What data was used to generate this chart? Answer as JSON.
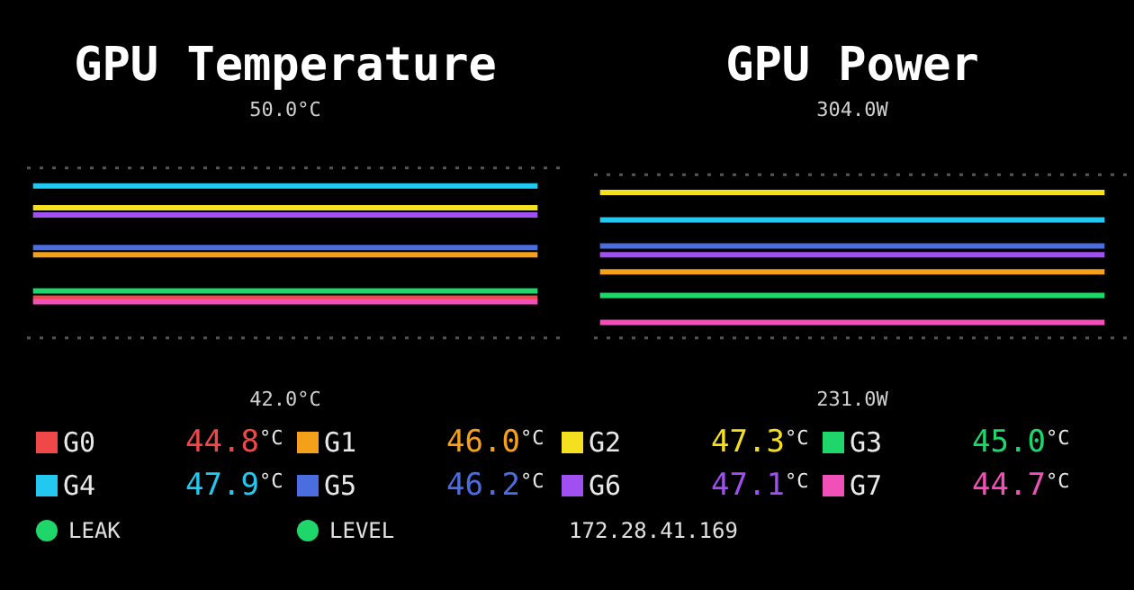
{
  "chart_data": [
    {
      "type": "line",
      "title": "GPU Temperature",
      "categories": [
        null,
        null,
        null,
        null,
        null,
        null,
        null,
        null,
        null,
        null,
        null,
        null,
        null,
        null,
        null,
        null
      ],
      "ylim": [
        42,
        50
      ],
      "yticks": [
        {
          "value": 42,
          "label": "42.0°C"
        },
        {
          "value": 50,
          "label": "50.0°C"
        }
      ],
      "tick_labels": "y",
      "grid": false,
      "legend": "bottom",
      "ref_lines": [
        {
          "axis": "y",
          "value": 48.4,
          "color": "#555555",
          "line_style": "dotted"
        },
        {
          "axis": "y",
          "value": 43.7,
          "color": "#555555",
          "line_style": "dotted"
        }
      ],
      "annotations": [
        "44.8°C",
        "46.0°C",
        "47.3°C",
        "45.0°C",
        "47.9°C",
        "46.2°C",
        "47.1°C",
        "44.7°C",
        "LEAK",
        "LEVEL",
        "172.28.41.169"
      ],
      "series": [
        {
          "name": "G0",
          "color": "#f04848",
          "values": [
            44.8,
            44.8,
            44.8,
            44.8,
            44.8,
            44.8,
            44.8,
            44.8,
            44.8,
            44.8,
            44.8,
            44.8,
            44.8,
            44.8,
            44.8,
            44.8
          ]
        },
        {
          "name": "G1",
          "color": "#f5a01a",
          "values": [
            46.0,
            46.0,
            46.0,
            46.0,
            46.0,
            46.0,
            46.0,
            46.0,
            46.0,
            46.0,
            46.0,
            46.0,
            46.0,
            46.0,
            46.0,
            46.0
          ]
        },
        {
          "name": "G2",
          "color": "#f5e020",
          "values": [
            47.3,
            47.3,
            47.3,
            47.3,
            47.3,
            47.3,
            47.3,
            47.3,
            47.3,
            47.3,
            47.3,
            47.3,
            47.3,
            47.3,
            47.3,
            47.3
          ]
        },
        {
          "name": "G3",
          "color": "#1ed66a",
          "values": [
            45.0,
            45.0,
            45.0,
            45.0,
            45.0,
            45.0,
            45.0,
            45.0,
            45.0,
            45.0,
            45.0,
            45.0,
            45.0,
            45.0,
            45.0,
            45.0
          ]
        },
        {
          "name": "G4",
          "color": "#22c8f0",
          "values": [
            47.9,
            47.9,
            47.9,
            47.9,
            47.9,
            47.9,
            47.9,
            47.9,
            47.9,
            47.9,
            47.9,
            47.9,
            47.9,
            47.9,
            47.9,
            47.9
          ]
        },
        {
          "name": "G5",
          "color": "#4a6ee0",
          "values": [
            46.2,
            46.2,
            46.2,
            46.2,
            46.2,
            46.2,
            46.2,
            46.2,
            46.2,
            46.2,
            46.2,
            46.2,
            46.2,
            46.2,
            46.2,
            46.2
          ]
        },
        {
          "name": "G6",
          "color": "#a050f0",
          "values": [
            47.1,
            47.1,
            47.1,
            47.1,
            47.1,
            47.1,
            47.1,
            47.1,
            47.1,
            47.1,
            47.1,
            47.1,
            47.1,
            47.1,
            47.1,
            47.1
          ]
        },
        {
          "name": "G7",
          "color": "#f050b8",
          "values": [
            44.7,
            44.7,
            44.7,
            44.7,
            44.7,
            44.7,
            44.7,
            44.7,
            44.7,
            44.7,
            44.7,
            44.7,
            44.7,
            44.7,
            44.7,
            44.7
          ]
        }
      ]
    },
    {
      "type": "line",
      "title": "GPU Power",
      "categories": [
        null,
        null,
        null,
        null,
        null,
        null,
        null,
        null,
        null,
        null,
        null,
        null,
        null,
        null,
        null,
        null
      ],
      "ylim": [
        231,
        304
      ],
      "yticks": [
        {
          "value": 231,
          "label": "231.0W"
        },
        {
          "value": 304,
          "label": "304.0W"
        }
      ],
      "tick_labels": "y",
      "grid": false,
      "ref_lines": [
        {
          "axis": "y",
          "value": 287.7,
          "color": "#555555",
          "line_style": "dotted"
        },
        {
          "axis": "y",
          "value": 246.5,
          "color": "#555555",
          "line_style": "dotted"
        }
      ],
      "series": [
        {
          "color": "#f04848",
          "values": [
            null,
            null,
            null,
            null,
            null,
            null,
            null,
            null,
            null,
            null,
            null,
            null,
            null,
            null,
            null,
            null
          ]
        },
        {
          "color": "#f5a01a",
          "values": [
            263.2,
            263.2,
            263.2,
            263.2,
            263.2,
            263.2,
            263.2,
            263.2,
            263.2,
            263.2,
            263.2,
            263.2,
            263.2,
            263.2,
            263.2,
            263.2
          ]
        },
        {
          "color": "#f5e020",
          "values": [
            283.2,
            283.2,
            283.2,
            283.2,
            283.2,
            283.2,
            283.2,
            283.2,
            283.2,
            283.2,
            283.2,
            283.2,
            283.2,
            283.2,
            283.2,
            283.2
          ]
        },
        {
          "color": "#1ed66a",
          "values": [
            257.2,
            257.2,
            257.2,
            257.2,
            257.2,
            257.2,
            257.2,
            257.2,
            257.2,
            257.2,
            257.2,
            257.2,
            257.2,
            257.2,
            257.2,
            257.2
          ]
        },
        {
          "color": "#22c8f0",
          "values": [
            276.3,
            276.3,
            276.3,
            276.3,
            276.3,
            276.3,
            276.3,
            276.3,
            276.3,
            276.3,
            276.3,
            276.3,
            276.3,
            276.3,
            276.3,
            276.3
          ]
        },
        {
          "color": "#4a6ee0",
          "values": [
            269.7,
            269.7,
            269.7,
            269.7,
            269.7,
            269.7,
            269.7,
            269.7,
            269.7,
            269.7,
            269.7,
            269.7,
            269.7,
            269.7,
            269.7,
            269.7
          ]
        },
        {
          "color": "#a050f0",
          "values": [
            267.5,
            267.5,
            267.5,
            267.5,
            267.5,
            267.5,
            267.5,
            267.5,
            267.5,
            267.5,
            267.5,
            267.5,
            267.5,
            267.5,
            267.5,
            267.5
          ]
        },
        {
          "color": "#f050b8",
          "values": [
            250.4,
            250.4,
            250.4,
            250.4,
            250.4,
            250.4,
            250.4,
            250.4,
            250.4,
            250.4,
            250.4,
            250.4,
            250.4,
            250.4,
            250.4,
            250.4
          ]
        }
      ]
    }
  ]
}
